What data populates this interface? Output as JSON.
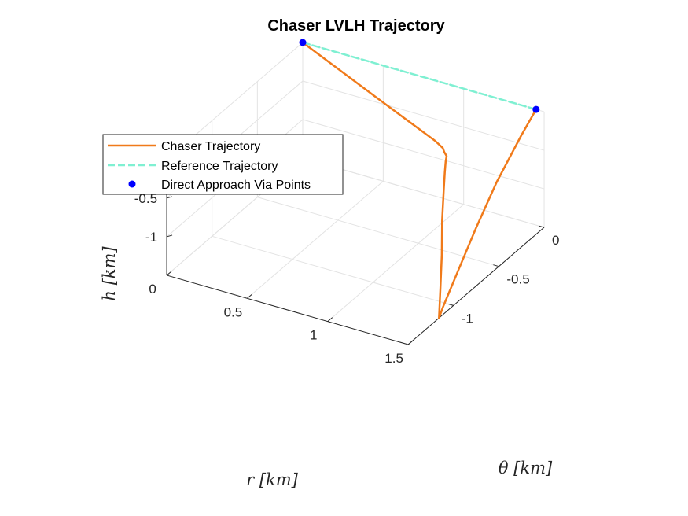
{
  "chart_data": {
    "type": "line3d",
    "title": "Chaser LVLH Trajectory",
    "xlabel": "r [km]",
    "ylabel": "θ [km]",
    "zlabel": "h [km]",
    "xlim": [
      0,
      1.5
    ],
    "ylim": [
      -1.5,
      0
    ],
    "zlim": [
      -1.5,
      0
    ],
    "x_ticks": [
      {
        "v": 0,
        "label": "0"
      },
      {
        "v": 0.5,
        "label": "0.5"
      },
      {
        "v": 1,
        "label": "1"
      },
      {
        "v": 1.5,
        "label": "1.5"
      }
    ],
    "y_ticks": [
      {
        "v": 0,
        "label": "0"
      },
      {
        "v": -0.5,
        "label": "-0.5"
      },
      {
        "v": -1,
        "label": "-1"
      }
    ],
    "z_ticks": [
      {
        "v": -0.5,
        "label": "-0.5"
      },
      {
        "v": -1,
        "label": "-1"
      }
    ],
    "grid": true,
    "legend_position": "upper-left",
    "series": [
      {
        "name": "Chaser Trajectory",
        "color": "#f07a1a",
        "style": "solid",
        "points": [
          [
            0,
            0,
            0
          ],
          [
            0.75,
            -0.38,
            0
          ],
          [
            1.15,
            -0.58,
            0
          ],
          [
            1.22,
            -0.62,
            -0.01
          ],
          [
            1.24,
            -0.64,
            -0.03
          ],
          [
            1.26,
            -0.65,
            -0.06
          ],
          [
            1.26,
            -0.66,
            -0.12
          ],
          [
            1.26,
            -0.67,
            -0.25
          ],
          [
            1.27,
            -0.7,
            -0.45
          ],
          [
            1.3,
            -0.77,
            -0.75
          ],
          [
            1.36,
            -0.88,
            -1.05
          ],
          [
            1.43,
            -1.02,
            -1.3
          ],
          [
            1.48,
            -1.12,
            -1.45
          ],
          [
            1.5,
            -1.16,
            -1.5
          ],
          [
            1.49,
            -1.1,
            -1.43
          ],
          [
            1.46,
            -0.88,
            -1.2
          ],
          [
            1.44,
            -0.65,
            -0.9
          ],
          [
            1.43,
            -0.4,
            -0.55
          ],
          [
            1.44,
            -0.15,
            -0.2
          ],
          [
            1.45,
            0,
            0
          ]
        ]
      },
      {
        "name": "Reference Trajectory",
        "color": "#7ff0d2",
        "style": "dashed",
        "points": [
          [
            0,
            0,
            0
          ],
          [
            1.45,
            0,
            0
          ]
        ]
      },
      {
        "name": "Direct Approach Via Points",
        "color": "#0000ff",
        "style": "marker",
        "points": [
          [
            0,
            0,
            0
          ],
          [
            1.45,
            0,
            0
          ]
        ]
      }
    ]
  }
}
